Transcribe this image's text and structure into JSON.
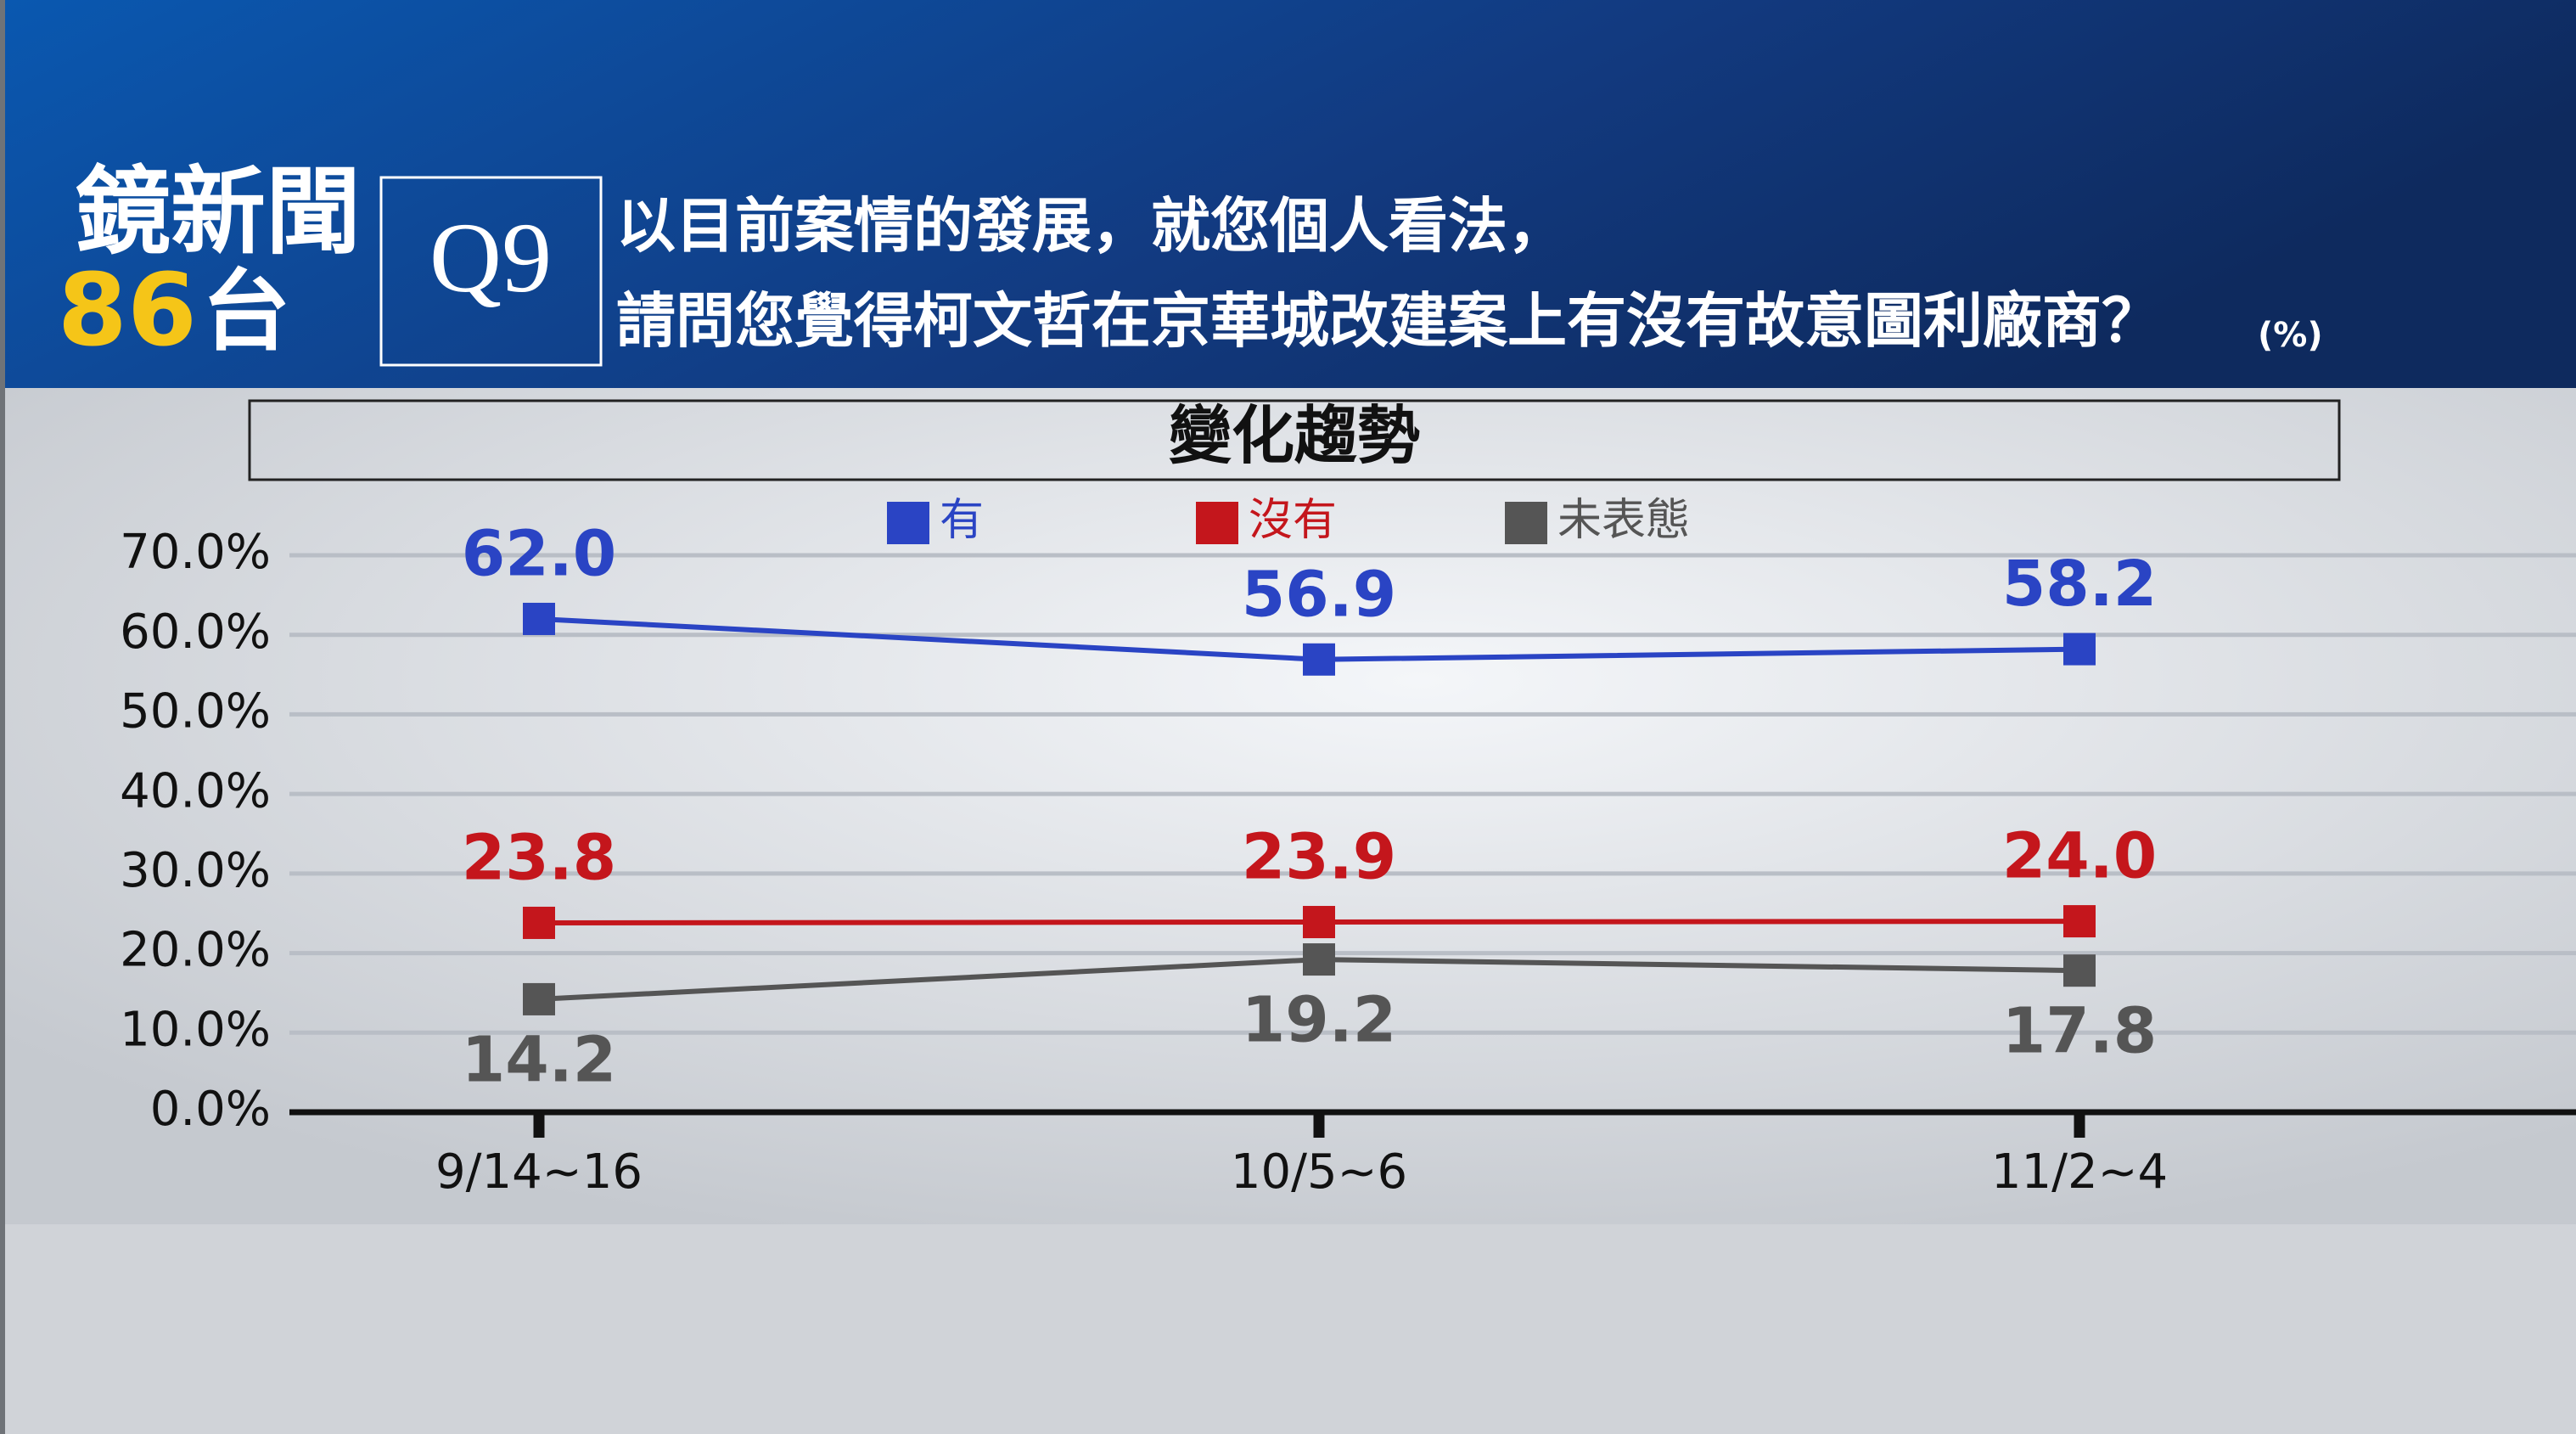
{
  "header": {
    "logo_line1": "鏡新聞",
    "logo_number": "86",
    "logo_suffix": "台",
    "question_no": "Q9",
    "question_line1": "以目前案情的發展，就您個人看法，",
    "question_line2": "請問您覺得柯文哲在京華城改建案上有沒有故意圖利廠商？",
    "unit": "(%)"
  },
  "chart_data": {
    "type": "line",
    "title": "變化趨勢",
    "categories": [
      "9/14~16",
      "10/5~6",
      "11/2~4"
    ],
    "series": [
      {
        "name": "有",
        "color": "#2a44c4",
        "values": [
          62.0,
          56.9,
          58.2
        ],
        "value_labels": [
          "62.0",
          "56.9",
          "58.2"
        ]
      },
      {
        "name": "沒有",
        "color": "#c4161c",
        "values": [
          23.8,
          23.9,
          24.0
        ],
        "value_labels": [
          "23.8",
          "23.9",
          "24.0"
        ]
      },
      {
        "name": "未表態",
        "color": "#555555",
        "values": [
          14.2,
          19.2,
          17.8
        ],
        "value_labels": [
          "14.2",
          "19.2",
          "17.8"
        ]
      }
    ],
    "ylim": [
      0,
      70
    ],
    "yticks": [
      {
        "value": 0,
        "label": "0.0%"
      },
      {
        "value": 10,
        "label": "10.0%"
      },
      {
        "value": 20,
        "label": "20.0%"
      },
      {
        "value": 30,
        "label": "30.0%"
      },
      {
        "value": 40,
        "label": "40.0%"
      },
      {
        "value": 50,
        "label": "50.0%"
      },
      {
        "value": 60,
        "label": "60.0%"
      },
      {
        "value": 70,
        "label": "70.0%"
      }
    ],
    "grid": true
  }
}
